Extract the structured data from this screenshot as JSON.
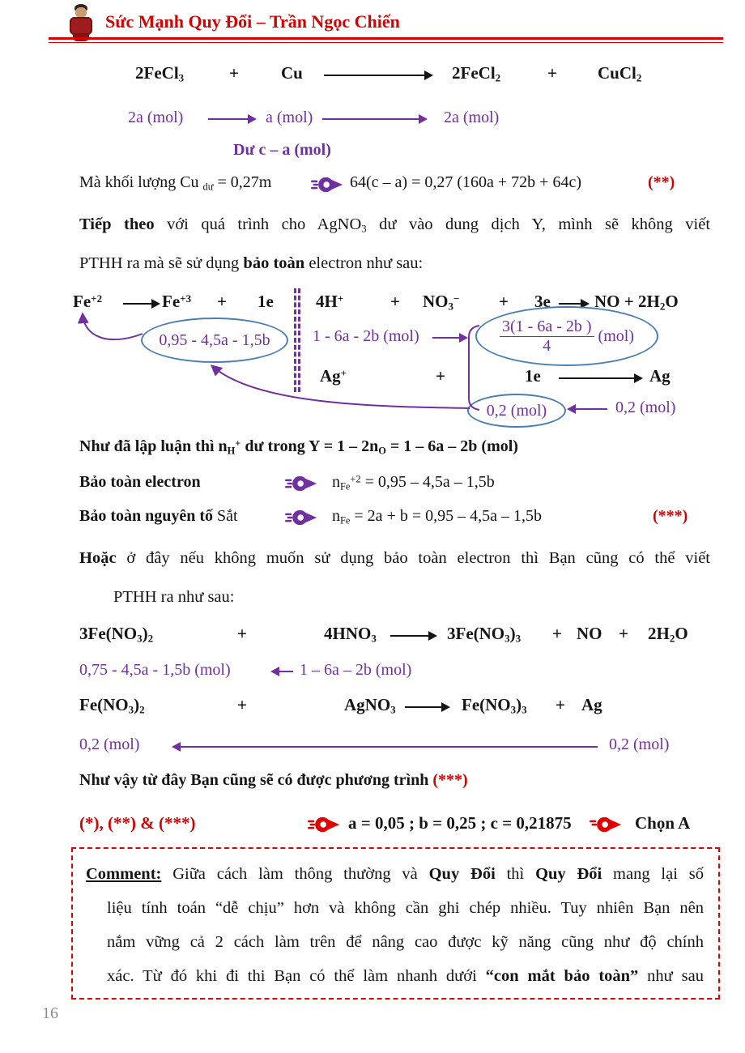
{
  "colors": {
    "accent_red": "#d50000",
    "accent_purple": "#7030a0",
    "ellipse_blue": "#4a7eb5"
  },
  "header": {
    "title": "Sức Mạnh Quy Đổi – Trần Ngọc Chiến"
  },
  "page_number": "16",
  "eq1": {
    "terms": [
      "2FeCl_3_",
      "+",
      "Cu",
      "2FeCl_2_",
      "+",
      "CuCl_2_"
    ]
  },
  "eq1_moles": {
    "m0": "2a (mol)",
    "m1": "a (mol)",
    "m2": "2a (mol)",
    "du": "Dư c – a (mol)"
  },
  "mass_line": {
    "left": "Mà khối lượng Cu _dư_ = 0,27m",
    "right": "64(c – a) = 0,27 (160a + 72b + 64c)",
    "tag": "(**)"
  },
  "para1": {
    "line1": "*Tiếp theo* với quá trình cho AgNO_3_ dư vào dung dịch Y, mình sẽ không viết",
    "line2": "PTHH ra mà sẽ sử dụng *bảo toàn* electron như sau:"
  },
  "diagram": {
    "fe_a": "Fe^+2^",
    "fe_b": "Fe^+3^",
    "fe_plus": "+",
    "fe_e": "1e",
    "fe_mol": "0,95 - 4,5a - 1,5b",
    "h_a": "4H^+^",
    "h_p1": "+",
    "h_b": "NO_3_^−^",
    "h_p2": "+",
    "h_c": "3e",
    "h_d": "NO + 2H_2_O",
    "h_mol": "1 - 6a - 2b (mol)",
    "no_frac": {
      "num": "3(1 - 6a - 2b )",
      "den": "4",
      "unit": "(mol)"
    },
    "ag_a": "Ag^+^",
    "ag_plus": "+",
    "ag_b": "1e",
    "ag_c": "Ag",
    "ag_mol_left": "0,2 (mol)",
    "ag_mol_right": "0,2 (mol)"
  },
  "nh_line": "Như đã lập luận thì n_H_^+^ dư trong Y = 1 – 2n_O_ = 1 – 6a – 2b (mol)",
  "bte": {
    "label": "Bảo toàn electron",
    "expr": "n_Fe_^+2^ = 0,95 – 4,5a – 1,5b"
  },
  "btnt": {
    "label": "*Bảo toàn nguyên tố* Sắt",
    "expr": "n_Fe_ = 2a + b = 0,95 – 4,5a – 1,5b",
    "tag": "(***)"
  },
  "para2": {
    "line1": "*Hoặc* ở đây nếu không muốn sử dụng bảo toàn electron thì Bạn cũng có thể viết",
    "line2": "PTHH ra như sau:"
  },
  "eq2": {
    "terms": [
      "3Fe(NO_3_)_2_",
      "+",
      "4HNO_3_",
      "3Fe(NO_3_)_3_",
      "+",
      "NO",
      "+",
      "2H_2_O"
    ]
  },
  "eq2_moles": {
    "left": "0,75 - 4,5a - 1,5b (mol)",
    "right": "1 – 6a – 2b (mol)"
  },
  "eq3": {
    "terms": [
      "Fe(NO_3_)_2_",
      "+",
      "AgNO_3_",
      "Fe(NO_3_)_3_",
      "+",
      "Ag"
    ]
  },
  "eq3_moles": {
    "left": "0,2 (mol)",
    "right": "0,2 (mol)"
  },
  "conclusion": {
    "text": "Như vậy từ đây Bạn cũng sẽ có được phương trình ",
    "tag": "(***)"
  },
  "result": {
    "tags": "(*), (**) & (***)",
    "values": "a = 0,05 ;  b = 0,25 ;  c = 0,21875",
    "choice": "Chọn A"
  },
  "comment": {
    "lines": [
      "*~Comment:~* Giữa cách làm thông thường và *Quy Đổi* thì *Quy Đổi* mang lại số",
      "liệu tính toán “dễ chịu” hơn và không cần ghi chép nhiều. Tuy nhiên Bạn nên",
      "nắm vững cả 2 cách làm trên để nâng cao được kỹ năng cũng như độ chính",
      "xác. Từ đó khi đi thi Bạn có thể làm nhanh dưới *“con mắt bảo toàn”* như sau"
    ]
  }
}
